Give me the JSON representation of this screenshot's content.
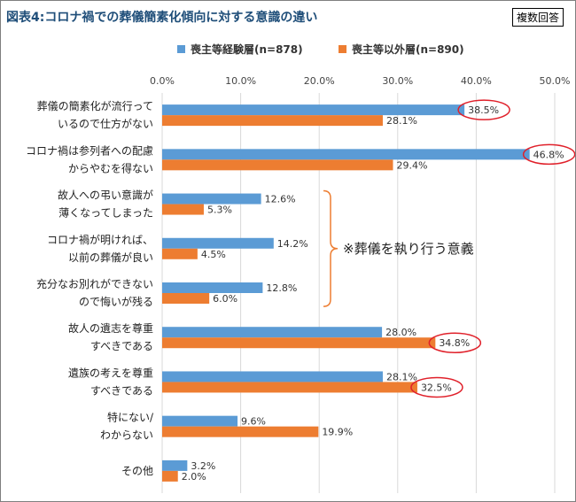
{
  "header": {
    "title": "図表4:コロナ禍での葬儀簡素化傾向に対する意識の違い",
    "tag": "複数回答"
  },
  "chart_data": {
    "type": "bar",
    "orientation": "horizontal",
    "title": "図表4:コロナ禍での葬儀簡素化傾向に対する意識の違い",
    "xlim": [
      0,
      50
    ],
    "ticks": [
      "0.0%",
      "10.0%",
      "20.0%",
      "30.0%",
      "40.0%",
      "50.0%"
    ],
    "tick_values": [
      0,
      10,
      20,
      30,
      40,
      50
    ],
    "categories": [
      [
        "葬儀の簡素化が流行って",
        "いるので仕方がない"
      ],
      [
        "コロナ禍は参列者への配慮",
        "からやむを得ない"
      ],
      [
        "故人への弔い意識が",
        "薄くなってしまった"
      ],
      [
        "コロナ禍が明ければ、",
        "以前の葬儀が良い"
      ],
      [
        "充分なお別れができない",
        "ので悔いが残る"
      ],
      [
        "故人の遺志を尊重",
        "すべきである"
      ],
      [
        "遺族の考えを尊重",
        "すべきである"
      ],
      [
        "特にない/",
        "わからない"
      ],
      [
        "その他"
      ]
    ],
    "series": [
      {
        "name": "喪主等経験層(n=878)",
        "color": "#5b9bd5",
        "values": [
          38.5,
          46.8,
          12.6,
          14.2,
          12.8,
          28.0,
          28.1,
          9.6,
          3.2
        ]
      },
      {
        "name": "喪主等以外層(n=890)",
        "color": "#ed7d31",
        "values": [
          28.1,
          29.4,
          5.3,
          4.5,
          6.0,
          34.8,
          32.5,
          19.9,
          2.0
        ]
      }
    ],
    "highlights": [
      {
        "category_index": 0,
        "series_index": 0
      },
      {
        "category_index": 1,
        "series_index": 0
      },
      {
        "category_index": 5,
        "series_index": 1
      },
      {
        "category_index": 6,
        "series_index": 1
      }
    ],
    "annotation": {
      "text": "※葬儀を執り行う意義",
      "categories": [
        2,
        3,
        4
      ]
    },
    "highlight_color": "#e0202a",
    "annotation_color": "#ed7d31",
    "grid": true,
    "legend_position": "top"
  }
}
